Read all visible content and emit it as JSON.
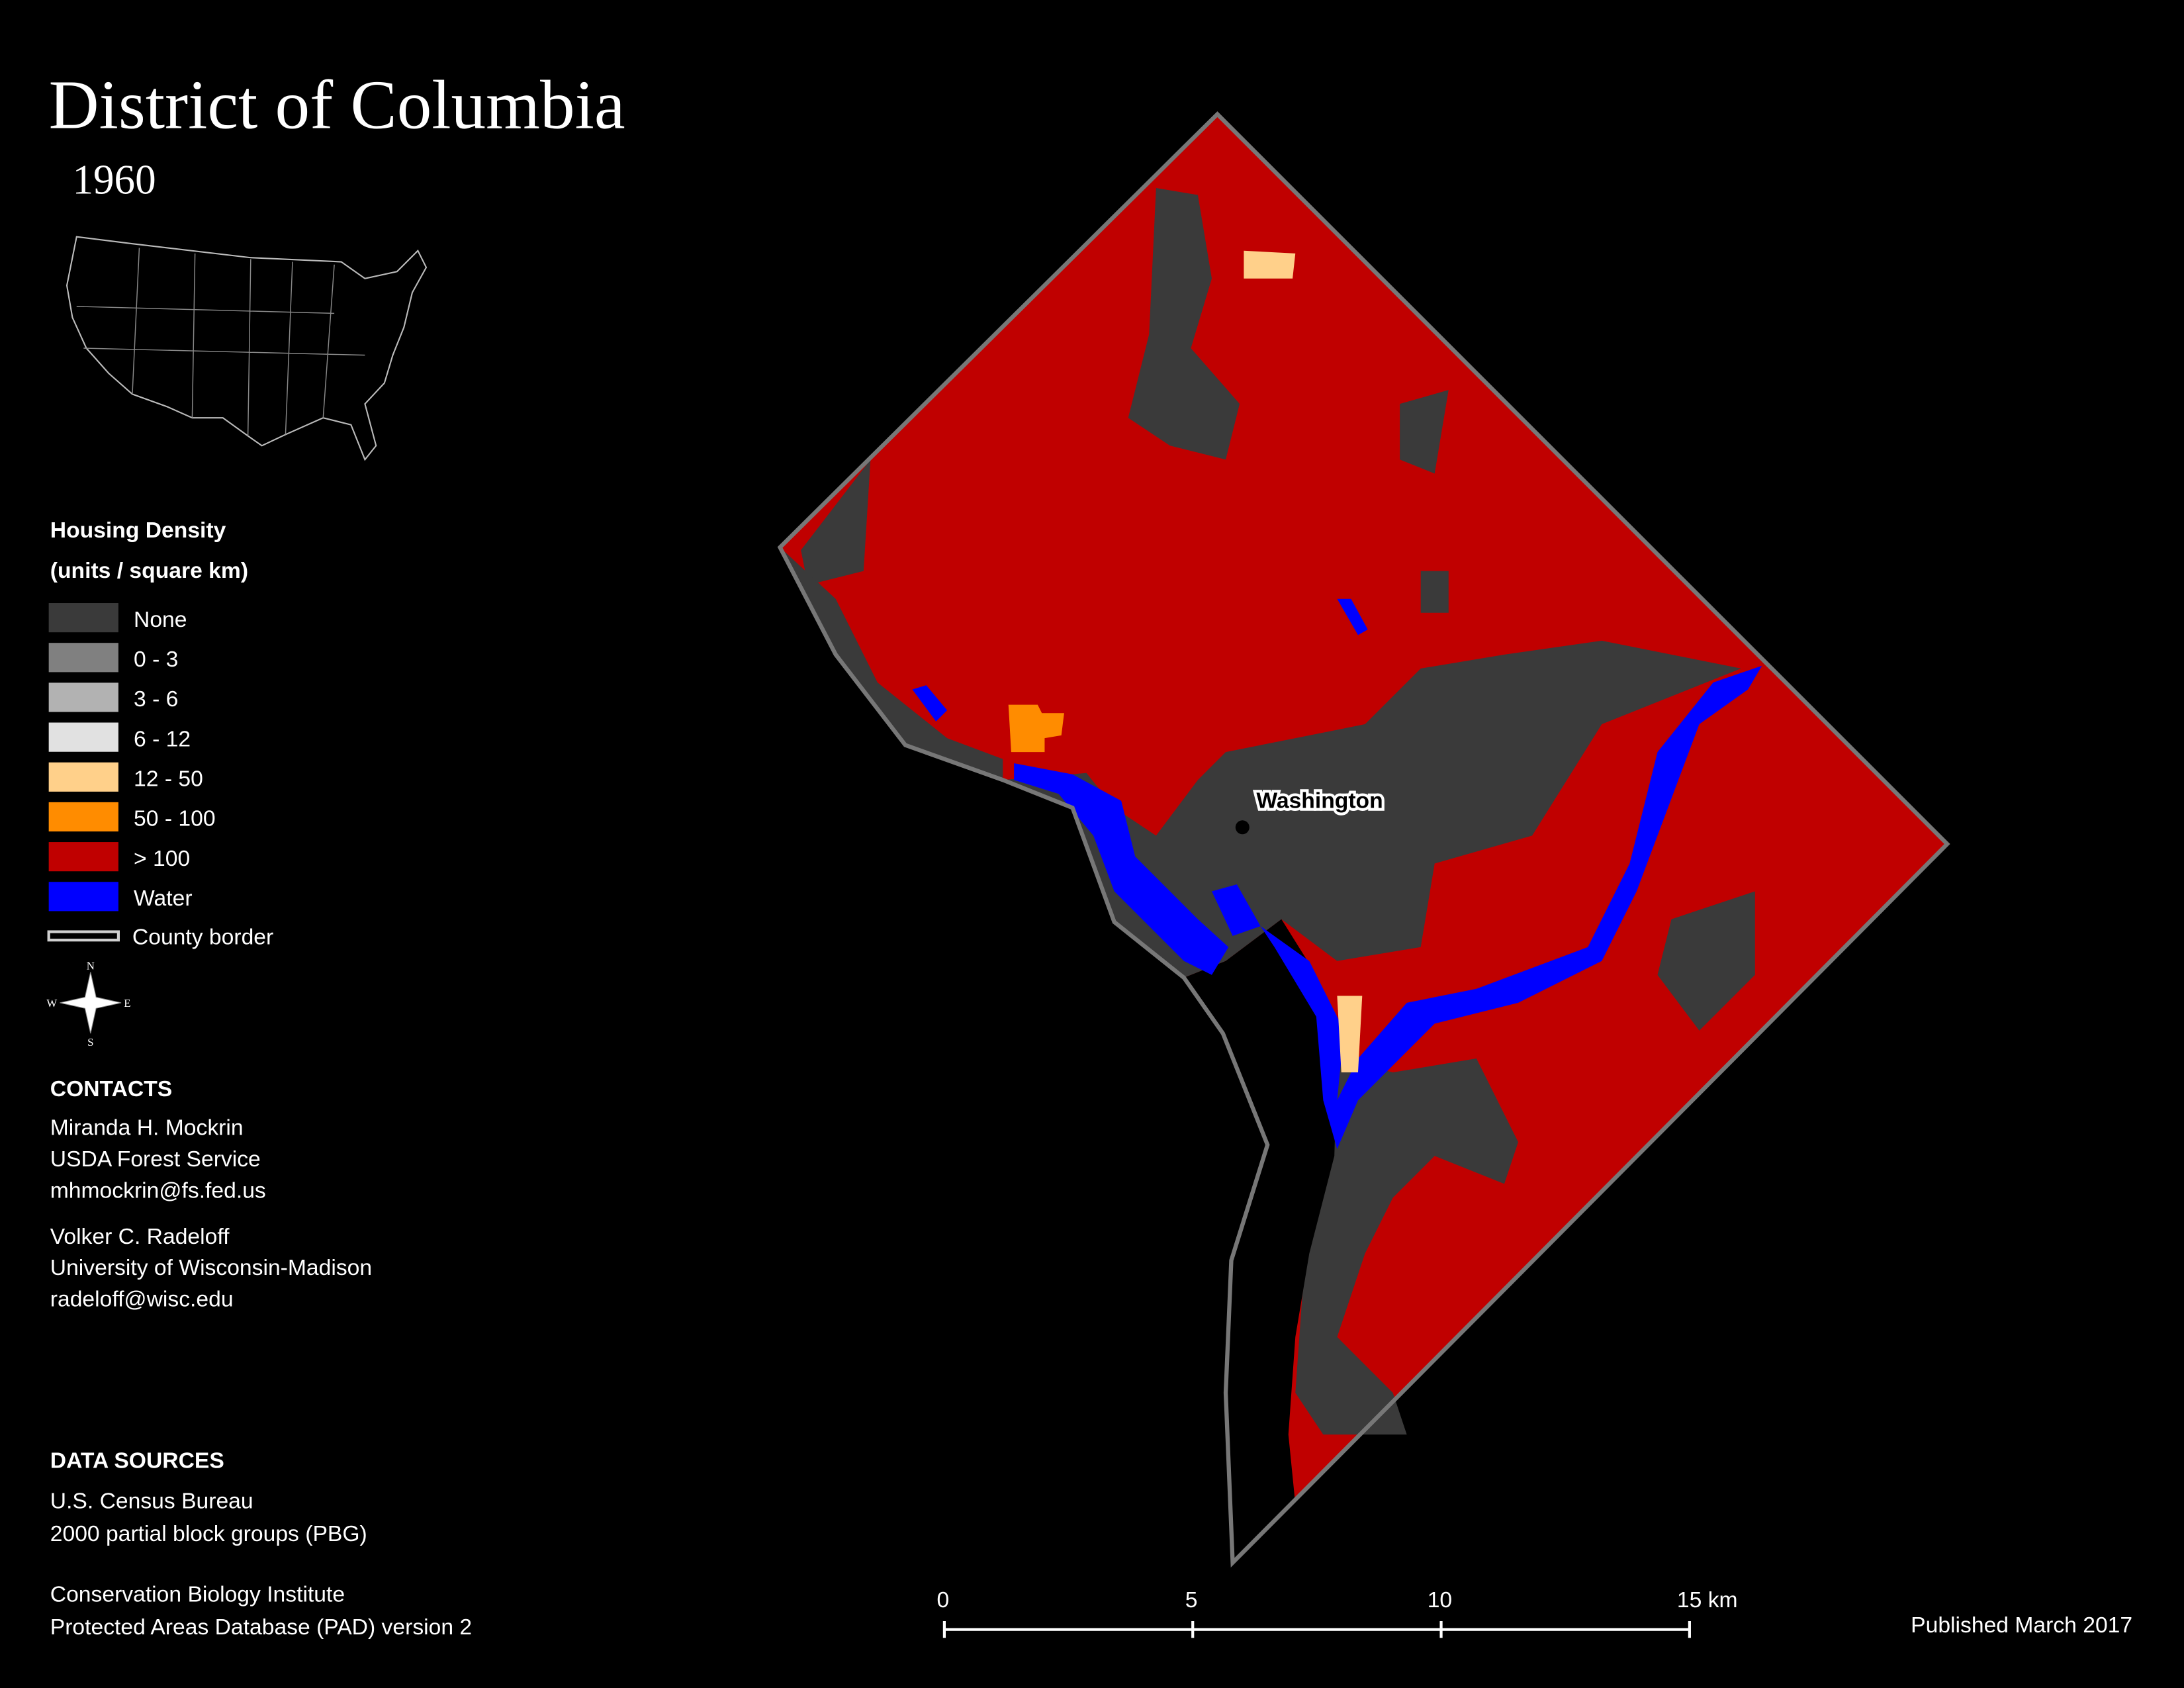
{
  "title": "District of Columbia",
  "subtitle": "1960",
  "legend": {
    "title": "Housing Density",
    "subtitle": "(units / square km)",
    "items": [
      {
        "label": "None",
        "color": "#3a3a3a"
      },
      {
        "label": "0 - 3",
        "color": "#808080"
      },
      {
        "label": "3 - 6",
        "color": "#b2b2b2"
      },
      {
        "label": "6 - 12",
        "color": "#e1e1e1"
      },
      {
        "label": "12 - 50",
        "color": "#ffd08a"
      },
      {
        "label": "50 - 100",
        "color": "#ff8c00"
      },
      {
        "label": "> 100",
        "color": "#c00000"
      },
      {
        "label": "Water",
        "color": "#0000ff"
      }
    ],
    "border": {
      "label": "County border",
      "color": "#d0d0d0"
    }
  },
  "compass": [
    "N",
    "E",
    "S",
    "W"
  ],
  "contacts": {
    "heading": "CONTACTS",
    "people": [
      [
        "Miranda H. Mockrin",
        "USDA Forest Service",
        "mhmockrin@fs.fed.us"
      ],
      [
        "Volker C. Radeloff",
        "University of Wisconsin-Madison",
        "radeloff@wisc.edu"
      ]
    ]
  },
  "data_sources": {
    "heading": "DATA SOURCES",
    "entries": [
      [
        "U.S. Census Bureau",
        "2000 partial block groups (PBG)"
      ],
      [
        "Conservation Biology Institute",
        "Protected Areas Database (PAD) version 2"
      ]
    ]
  },
  "map": {
    "place_label": "Washington"
  },
  "scale_bar": {
    "ticks": [
      0,
      5,
      10,
      {
        "value": 15,
        "label": "15 km"
      }
    ]
  },
  "published": "Published March 2017"
}
